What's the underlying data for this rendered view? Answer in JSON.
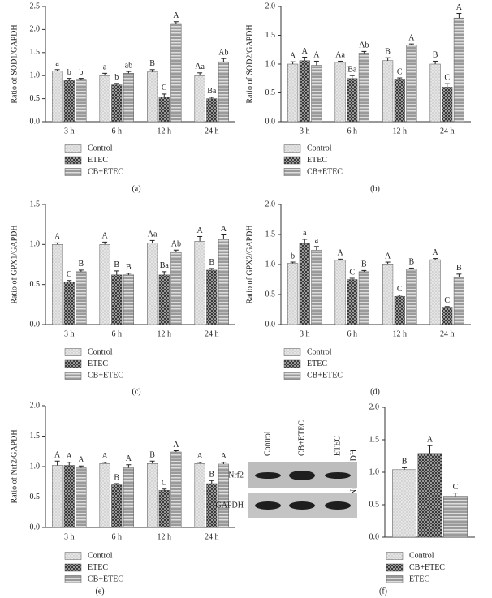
{
  "chart_data": [
    {
      "type": "bar",
      "panel_label": "(a)",
      "ylabel": "Ratio of SOD1/GAPDH",
      "categories": [
        "3 h",
        "6 h",
        "12 h",
        "24 h"
      ],
      "ylim": [
        0,
        2.5
      ],
      "yticks": [
        {
          "value": 0,
          "label": "0.0"
        },
        0.5,
        {
          "value": 1,
          "label": "1.0"
        },
        1.5,
        {
          "value": 2,
          "label": "2.0"
        },
        2.5
      ],
      "series": [
        {
          "name": "Control",
          "color": "#d4d4d4",
          "pattern": "dots",
          "values": [
            1.1,
            1.0,
            1.08,
            1.0
          ],
          "errors": [
            0.03,
            0.05,
            0.05,
            0.06
          ],
          "sig_labels": [
            "a",
            "a",
            "B",
            "Aa"
          ]
        },
        {
          "name": "ETEC",
          "color": "#3a3a3a",
          "pattern": "checks",
          "values": [
            0.9,
            0.8,
            0.53,
            0.5
          ],
          "errors": [
            0.04,
            0.03,
            0.07,
            0.03
          ],
          "sig_labels": [
            "b",
            "b",
            "C",
            "Ba"
          ]
        },
        {
          "name": "CB+ETEC",
          "color": "#9a9a9a",
          "pattern": "stripes",
          "values": [
            0.92,
            1.05,
            2.13,
            1.3
          ],
          "errors": [
            0.02,
            0.04,
            0.04,
            0.07
          ],
          "sig_labels": [
            "b",
            "ab",
            "A",
            "Ab"
          ]
        }
      ]
    },
    {
      "type": "bar",
      "panel_label": "(b)",
      "ylabel": "Ratio of SOD2/GAPDH",
      "categories": [
        "3 h",
        "6 h",
        "12 h",
        "24 h"
      ],
      "ylim": [
        0,
        2
      ],
      "yticks": [
        {
          "value": 0,
          "label": "0.0"
        },
        0.5,
        {
          "value": 1,
          "label": "1.0"
        },
        1.5,
        {
          "value": 2,
          "label": "2.0"
        }
      ],
      "series": [
        {
          "name": "Control",
          "color": "#d4d4d4",
          "pattern": "dots",
          "values": [
            1.0,
            1.03,
            1.06,
            1.0
          ],
          "errors": [
            0.04,
            0.02,
            0.05,
            0.05
          ],
          "sig_labels": [
            "A",
            "Aa",
            "B",
            "B"
          ]
        },
        {
          "name": "ETEC",
          "color": "#3a3a3a",
          "pattern": "checks",
          "values": [
            1.06,
            0.75,
            0.74,
            0.6
          ],
          "errors": [
            0.06,
            0.05,
            0.02,
            0.06
          ],
          "sig_labels": [
            "A",
            "Ba",
            "C",
            "C"
          ]
        },
        {
          "name": "CB+ETEC",
          "color": "#9a9a9a",
          "pattern": "stripes",
          "values": [
            0.98,
            1.19,
            1.33,
            1.8
          ],
          "errors": [
            0.07,
            0.03,
            0.02,
            0.08
          ],
          "sig_labels": [
            "A",
            "Ab",
            "A",
            "A"
          ]
        }
      ]
    },
    {
      "type": "bar",
      "panel_label": "(c)",
      "ylabel": "Ratio of GPX1/GAPDH",
      "categories": [
        "3 h",
        "6 h",
        "12 h",
        "24 h"
      ],
      "ylim": [
        0,
        1.5
      ],
      "yticks": [
        {
          "value": 0,
          "label": "0.0"
        },
        0.5,
        {
          "value": 1,
          "label": "1.0"
        },
        1.5
      ],
      "series": [
        {
          "name": "Control",
          "color": "#d4d4d4",
          "pattern": "dots",
          "values": [
            1.0,
            1.0,
            1.02,
            1.04
          ],
          "errors": [
            0.02,
            0.03,
            0.03,
            0.06
          ],
          "sig_labels": [
            "A",
            "A",
            "Aa",
            "A"
          ]
        },
        {
          "name": "ETEC",
          "color": "#3a3a3a",
          "pattern": "checks",
          "values": [
            0.53,
            0.62,
            0.62,
            0.68
          ],
          "errors": [
            0.02,
            0.05,
            0.04,
            0.02
          ],
          "sig_labels": [
            "C",
            "B",
            "Ba",
            "B"
          ]
        },
        {
          "name": "CB+ETEC",
          "color": "#9a9a9a",
          "pattern": "stripes",
          "values": [
            0.66,
            0.62,
            0.91,
            1.07
          ],
          "errors": [
            0.02,
            0.02,
            0.02,
            0.05
          ],
          "sig_labels": [
            "B",
            "B",
            "Ab",
            "A"
          ]
        }
      ]
    },
    {
      "type": "bar",
      "panel_label": "(d)",
      "ylabel": "Ratio of GPX2/GAPDH",
      "categories": [
        "3 h",
        "6 h",
        "12 h",
        "24 h"
      ],
      "ylim": [
        0,
        2
      ],
      "yticks": [
        {
          "value": 0,
          "label": "0.0"
        },
        0.5,
        {
          "value": 1,
          "label": "1.0"
        },
        1.5,
        {
          "value": 2,
          "label": "2.0"
        }
      ],
      "series": [
        {
          "name": "Control",
          "color": "#d4d4d4",
          "pattern": "dots",
          "values": [
            1.02,
            1.07,
            1.01,
            1.08
          ],
          "errors": [
            0.02,
            0.02,
            0.03,
            0.02
          ],
          "sig_labels": [
            "b",
            "A",
            "A",
            "A"
          ]
        },
        {
          "name": "ETEC",
          "color": "#3a3a3a",
          "pattern": "checks",
          "values": [
            1.35,
            0.75,
            0.47,
            0.29
          ],
          "errors": [
            0.07,
            0.02,
            0.02,
            0.01
          ],
          "sig_labels": [
            "a",
            "C",
            "C",
            "C"
          ]
        },
        {
          "name": "CB+ETEC",
          "color": "#9a9a9a",
          "pattern": "stripes",
          "values": [
            1.24,
            0.88,
            0.92,
            0.79
          ],
          "errors": [
            0.06,
            0.02,
            0.02,
            0.05
          ],
          "sig_labels": [
            "a",
            "B",
            "B",
            "B"
          ]
        }
      ]
    },
    {
      "type": "bar",
      "panel_label": "(e)",
      "ylabel": "Ratio of Nrf2/GAPDH",
      "categories": [
        "3 h",
        "6 h",
        "12 h",
        "24 h"
      ],
      "ylim": [
        0,
        2
      ],
      "yticks": [
        {
          "value": 0,
          "label": "0.0"
        },
        0.5,
        {
          "value": 1,
          "label": "1.0"
        },
        1.5,
        {
          "value": 2,
          "label": "2.0"
        }
      ],
      "series": [
        {
          "name": "Control",
          "color": "#d4d4d4",
          "pattern": "dots",
          "values": [
            1.02,
            1.05,
            1.05,
            1.05
          ],
          "errors": [
            0.07,
            0.02,
            0.04,
            0.02
          ],
          "sig_labels": [
            "A",
            "A",
            "B",
            "A"
          ]
        },
        {
          "name": "ETEC",
          "color": "#3a3a3a",
          "pattern": "checks",
          "values": [
            1.02,
            0.7,
            0.61,
            0.72
          ],
          "errors": [
            0.05,
            0.02,
            0.02,
            0.05
          ],
          "sig_labels": [
            "A",
            "B",
            "C",
            "B"
          ]
        },
        {
          "name": "CB+ETEC",
          "color": "#9a9a9a",
          "pattern": "stripes",
          "values": [
            0.98,
            0.98,
            1.24,
            1.04
          ],
          "errors": [
            0.03,
            0.05,
            0.02,
            0.03
          ],
          "sig_labels": [
            "A",
            "A",
            "A",
            "A"
          ]
        }
      ]
    },
    {
      "type": "bar",
      "panel_label": "(f)",
      "ylabel": "Nrf2/GAPDH",
      "categories": [
        null
      ],
      "ylim": [
        0,
        2
      ],
      "yticks": [
        {
          "value": 0,
          "label": "0.0"
        },
        0.5,
        {
          "value": 1,
          "label": "1.0"
        },
        1.5,
        {
          "value": 2,
          "label": "2.0"
        }
      ],
      "blot": {
        "lanes": [
          "Control",
          "CB+ETEC",
          "ETEC"
        ],
        "rows": [
          "Nrf2",
          "GAPDH"
        ]
      },
      "series": [
        {
          "name": "Control",
          "color": "#d4d4d4",
          "pattern": "dots",
          "values": [
            1.04
          ],
          "errors": [
            0.03
          ],
          "sig_labels": [
            "B"
          ]
        },
        {
          "name": "CB+ETEC",
          "color": "#3a3a3a",
          "pattern": "checks",
          "values": [
            1.29
          ],
          "errors": [
            0.12
          ],
          "sig_labels": [
            "A"
          ]
        },
        {
          "name": "ETEC",
          "color": "#9a9a9a",
          "pattern": "stripes",
          "values": [
            0.63
          ],
          "errors": [
            0.05
          ],
          "sig_labels": [
            "C"
          ]
        }
      ]
    }
  ]
}
